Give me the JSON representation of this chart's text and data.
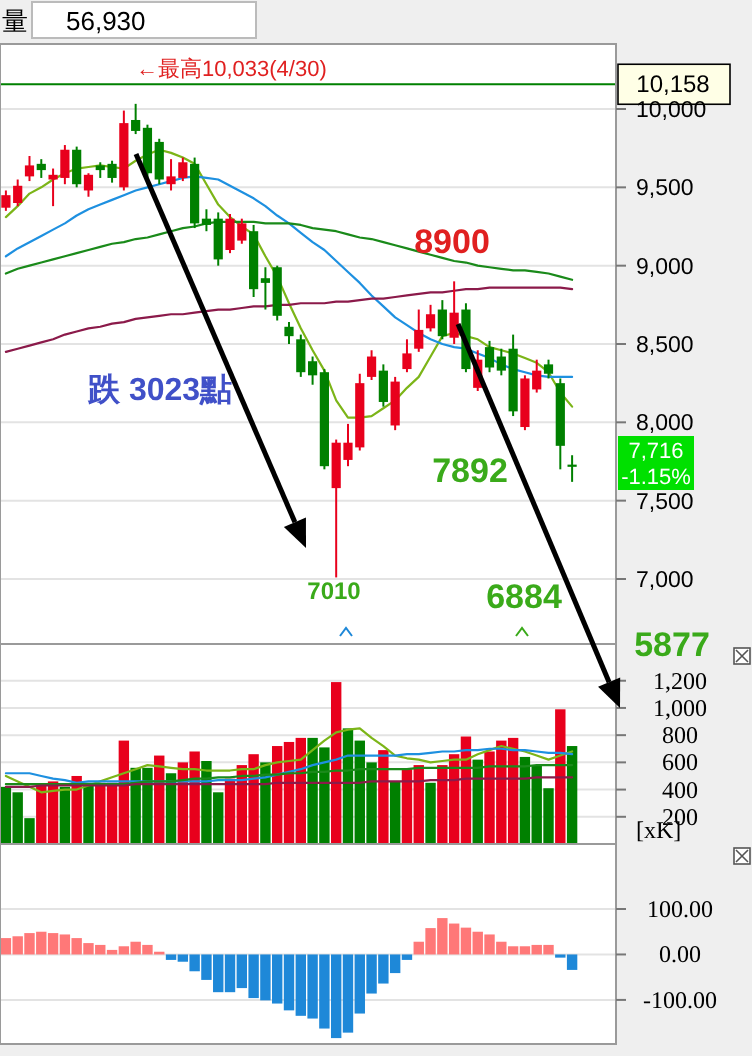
{
  "chart_data": [
    {
      "type": "candlestick",
      "categories": [
        null,
        null,
        null,
        null,
        null,
        null,
        null,
        null,
        null,
        null,
        null,
        null,
        null,
        null,
        null,
        null,
        null,
        null,
        null,
        null,
        null,
        null,
        null,
        null,
        null,
        null,
        null,
        null,
        null,
        null,
        null,
        null,
        null,
        null,
        null,
        null,
        null,
        null,
        null,
        null,
        null,
        null,
        null,
        null,
        null,
        null,
        null,
        null,
        null
      ],
      "ohlc": [
        [
          9370,
          9480,
          9350,
          9450
        ],
        [
          9400,
          9550,
          9380,
          9510
        ],
        [
          9570,
          9700,
          9540,
          9640
        ],
        [
          9650,
          9680,
          9560,
          9610
        ],
        [
          9550,
          9620,
          9380,
          9580
        ],
        [
          9560,
          9770,
          9520,
          9740
        ],
        [
          9740,
          9760,
          9500,
          9520
        ],
        [
          9480,
          9590,
          9440,
          9580
        ],
        [
          9640,
          9660,
          9560,
          9610
        ],
        [
          9650,
          9670,
          9530,
          9560
        ],
        [
          9500,
          9990,
          9480,
          9910
        ],
        [
          9930,
          10033,
          9840,
          9860
        ],
        [
          9880,
          9900,
          9560,
          9590
        ],
        [
          9790,
          9810,
          9520,
          9550
        ],
        [
          9520,
          9680,
          9480,
          9570
        ],
        [
          9560,
          9690,
          9540,
          9660
        ],
        [
          9650,
          9690,
          9240,
          9270
        ],
        [
          9300,
          9360,
          9220,
          9260
        ],
        [
          9300,
          9340,
          9000,
          9040
        ],
        [
          9100,
          9330,
          9080,
          9300
        ],
        [
          9160,
          9300,
          9140,
          9270
        ],
        [
          9220,
          9260,
          8800,
          8850
        ],
        [
          8920,
          8990,
          8720,
          8890
        ],
        [
          8990,
          9000,
          8650,
          8680
        ],
        [
          8610,
          8640,
          8500,
          8550
        ],
        [
          8530,
          8560,
          8290,
          8320
        ],
        [
          8390,
          8420,
          8240,
          8300
        ],
        [
          8320,
          8340,
          7700,
          7720
        ],
        [
          7580,
          7890,
          7010,
          7870
        ],
        [
          7760,
          7990,
          7720,
          7870
        ],
        [
          7840,
          8310,
          7820,
          8250
        ],
        [
          8290,
          8460,
          8270,
          8420
        ],
        [
          8330,
          8370,
          8100,
          8130
        ],
        [
          7980,
          8290,
          7950,
          8260
        ],
        [
          8340,
          8530,
          8320,
          8440
        ],
        [
          8470,
          8720,
          8450,
          8590
        ],
        [
          8600,
          8750,
          8580,
          8690
        ],
        [
          8720,
          8780,
          8530,
          8550
        ],
        [
          8540,
          8900,
          8500,
          8700
        ],
        [
          8720,
          8760,
          8320,
          8340
        ],
        [
          8220,
          8460,
          8200,
          8400
        ],
        [
          8480,
          8520,
          8320,
          8350
        ],
        [
          8420,
          8470,
          8300,
          8330
        ],
        [
          8470,
          8560,
          8040,
          8070
        ],
        [
          7970,
          8300,
          7950,
          8280
        ],
        [
          8210,
          8400,
          8190,
          8330
        ],
        [
          8370,
          8400,
          8280,
          8310
        ],
        [
          8250,
          8280,
          7700,
          7850
        ],
        [
          7730,
          7790,
          7620,
          7716
        ]
      ],
      "colors": [
        "#e8001c",
        "#e8001c",
        "#e8001c",
        "#008000",
        "#e8001c",
        "#e8001c",
        "#008000",
        "#e8001c",
        "#008000",
        "#008000",
        "#e8001c",
        "#008000",
        "#008000",
        "#008000",
        "#e8001c",
        "#e8001c",
        "#008000",
        "#008000",
        "#008000",
        "#e8001c",
        "#e8001c",
        "#008000",
        "#008000",
        "#008000",
        "#008000",
        "#008000",
        "#008000",
        "#008000",
        "#e8001c",
        "#e8001c",
        "#e8001c",
        "#e8001c",
        "#008000",
        "#e8001c",
        "#e8001c",
        "#e8001c",
        "#e8001c",
        "#008000",
        "#e8001c",
        "#008000",
        "#e8001c",
        "#008000",
        "#008000",
        "#008000",
        "#e8001c",
        "#e8001c",
        "#008000",
        "#008000",
        "#008000"
      ],
      "series": [
        {
          "type": "line",
          "color": "#7cb518",
          "values": [
            9310,
            9380,
            9460,
            9500,
            9550,
            9590,
            9620,
            9630,
            9640,
            9630,
            9620,
            9670,
            9710,
            9740,
            9720,
            9690,
            9650,
            9520,
            9390,
            9310,
            9250,
            9200,
            9060,
            8930,
            8760,
            8600,
            8460,
            8330,
            8140,
            8030,
            8030,
            8040,
            8090,
            8140,
            8220,
            8290,
            8420,
            8550,
            8570,
            8550,
            8530,
            8480,
            8460,
            8440,
            8410,
            8380,
            8320,
            8190,
            8100
          ]
        },
        {
          "type": "line",
          "color": "#1e90e0",
          "values": [
            9060,
            9110,
            9150,
            9190,
            9230,
            9270,
            9320,
            9360,
            9390,
            9420,
            9450,
            9480,
            9500,
            9520,
            9540,
            9560,
            9570,
            9560,
            9550,
            9510,
            9470,
            9430,
            9380,
            9320,
            9270,
            9210,
            9150,
            9100,
            9030,
            8960,
            8890,
            8810,
            8740,
            8670,
            8620,
            8570,
            8530,
            8500,
            8480,
            8470,
            8440,
            8410,
            8370,
            8340,
            8320,
            8300,
            8290,
            8290,
            8290
          ]
        },
        {
          "type": "line",
          "color": "#1a8a1a",
          "values": [
            8950,
            8980,
            9000,
            9020,
            9040,
            9060,
            9080,
            9100,
            9120,
            9140,
            9150,
            9170,
            9180,
            9200,
            9220,
            9240,
            9250,
            9270,
            9280,
            9280,
            9280,
            9280,
            9270,
            9270,
            9270,
            9260,
            9240,
            9230,
            9220,
            9200,
            9180,
            9170,
            9150,
            9130,
            9110,
            9090,
            9070,
            9050,
            9030,
            9020,
            9000,
            8990,
            8980,
            8970,
            8970,
            8960,
            8950,
            8930,
            8910
          ]
        },
        {
          "type": "line",
          "color": "#8b1a4a",
          "values": [
            8450,
            8470,
            8490,
            8510,
            8530,
            8560,
            8580,
            8600,
            8610,
            8630,
            8640,
            8660,
            8670,
            8680,
            8690,
            8690,
            8700,
            8710,
            8720,
            8720,
            8730,
            8740,
            8740,
            8750,
            8750,
            8760,
            8760,
            8760,
            8770,
            8770,
            8780,
            8790,
            8790,
            8800,
            8810,
            8820,
            8830,
            8830,
            8840,
            8850,
            8850,
            8860,
            8860,
            8860,
            8860,
            8860,
            8860,
            8860,
            8850
          ]
        }
      ],
      "ylim": [
        6585,
        10415
      ],
      "yticks": [
        {
          "value": 7000,
          "label": "7,000"
        },
        {
          "value": 7500,
          "label": "7,500"
        },
        {
          "value": 8000,
          "label": "8,000"
        },
        {
          "value": 8500,
          "label": "8,500"
        },
        {
          "value": 9000,
          "label": "9,000"
        },
        {
          "value": 9500,
          "label": "9,500"
        },
        {
          "value": 10000,
          "label": "10,000"
        }
      ],
      "grid": "y",
      "tick_labels": "y",
      "ref_lines": [
        {
          "axis": "y",
          "value": 10158,
          "label": "10,158",
          "color": "#008000"
        }
      ],
      "annotations": [
        "量",
        "56,930",
        "←最高10,033(4/30)",
        {
          "text": "8900",
          "y": 8900
        },
        {
          "text": "7010",
          "y": 7010
        },
        "7892",
        "6884",
        "5877",
        "跌 3023點",
        "7,716",
        "-1.15%"
      ]
    },
    {
      "type": "bar",
      "categories": [
        null,
        null,
        null,
        null,
        null,
        null,
        null,
        null,
        null,
        null,
        null,
        null,
        null,
        null,
        null,
        null,
        null,
        null,
        null,
        null,
        null,
        null,
        null,
        null,
        null,
        null,
        null,
        null,
        null,
        null,
        null,
        null,
        null,
        null,
        null,
        null,
        null,
        null,
        null,
        null,
        null,
        null,
        null,
        null,
        null,
        null,
        null,
        null,
        null
      ],
      "series": [
        {
          "type": "bar",
          "values": [
            420,
            380,
            190,
            440,
            460,
            420,
            500,
            450,
            450,
            450,
            760,
            560,
            560,
            650,
            520,
            600,
            680,
            610,
            380,
            480,
            580,
            660,
            600,
            720,
            750,
            780,
            780,
            710,
            1190,
            850,
            760,
            600,
            690,
            460,
            550,
            580,
            450,
            580,
            660,
            790,
            620,
            680,
            760,
            780,
            640,
            580,
            410,
            990,
            720
          ],
          "colors": [
            "#008000",
            "#008000",
            "#008000",
            "#e8001c",
            "#e8001c",
            "#008000",
            "#e8001c",
            "#008000",
            "#e8001c",
            "#e8001c",
            "#e8001c",
            "#008000",
            "#008000",
            "#e8001c",
            "#008000",
            "#e8001c",
            "#e8001c",
            "#008000",
            "#008000",
            "#e8001c",
            "#e8001c",
            "#e8001c",
            "#008000",
            "#e8001c",
            "#e8001c",
            "#e8001c",
            "#008000",
            "#008000",
            "#e8001c",
            "#008000",
            "#008000",
            "#008000",
            "#e8001c",
            "#008000",
            "#e8001c",
            "#e8001c",
            "#008000",
            "#e8001c",
            "#e8001c",
            "#e8001c",
            "#008000",
            "#e8001c",
            "#e8001c",
            "#e8001c",
            "#008000",
            "#008000",
            "#008000",
            "#e8001c",
            "#008000"
          ]
        },
        {
          "type": "line",
          "color": "#7cb518",
          "values": [
            500,
            460,
            420,
            380,
            390,
            400,
            400,
            430,
            460,
            490,
            520,
            550,
            580,
            570,
            560,
            550,
            550,
            540,
            540,
            540,
            550,
            550,
            580,
            600,
            610,
            620,
            690,
            760,
            820,
            840,
            850,
            780,
            720,
            650,
            630,
            620,
            600,
            610,
            620,
            620,
            660,
            690,
            720,
            700,
            680,
            650,
            620,
            650,
            680
          ]
        },
        {
          "type": "line",
          "color": "#1e90e0",
          "values": [
            520,
            520,
            520,
            500,
            480,
            470,
            450,
            460,
            460,
            460,
            460,
            460,
            460,
            460,
            460,
            460,
            460,
            460,
            470,
            470,
            470,
            480,
            490,
            510,
            530,
            550,
            580,
            600,
            620,
            650,
            650,
            650,
            650,
            650,
            660,
            660,
            670,
            680,
            680,
            690,
            690,
            700,
            700,
            690,
            690,
            680,
            670,
            670,
            660
          ]
        },
        {
          "type": "line",
          "color": "#1a8a1a",
          "values": [
            440,
            440,
            440,
            440,
            440,
            440,
            440,
            440,
            440,
            440,
            440,
            450,
            460,
            460,
            460,
            470,
            480,
            480,
            490,
            490,
            500,
            500,
            510,
            510,
            520,
            520,
            530,
            530,
            540,
            540,
            550,
            550,
            550,
            550,
            550,
            560,
            560,
            560,
            560,
            560,
            560,
            570,
            570,
            570,
            570,
            580,
            580,
            580,
            580
          ]
        },
        {
          "type": "line",
          "color": "#8b1a4a",
          "values": [
            420,
            420,
            420,
            430,
            430,
            430,
            430,
            430,
            430,
            430,
            430,
            440,
            440,
            440,
            440,
            440,
            440,
            440,
            440,
            440,
            440,
            440,
            440,
            450,
            450,
            450,
            450,
            450,
            450,
            450,
            450,
            460,
            460,
            460,
            460,
            460,
            470,
            470,
            470,
            480,
            480,
            480,
            480,
            480,
            480,
            490,
            490,
            490,
            490
          ]
        }
      ],
      "ylim": [
        0,
        1470
      ],
      "yticks": [
        {
          "value": 200,
          "label": "200"
        },
        {
          "value": 400,
          "label": "400"
        },
        {
          "value": 600,
          "label": "600"
        },
        {
          "value": 800,
          "label": "800"
        },
        {
          "value": 1000,
          "label": "1,000"
        },
        {
          "value": 1200,
          "label": "1,200"
        }
      ],
      "ylabel": "[xK]",
      "grid": "y",
      "tick_labels": "y"
    },
    {
      "type": "bar",
      "categories": [
        null,
        null,
        null,
        null,
        null,
        null,
        null,
        null,
        null,
        null,
        null,
        null,
        null,
        null,
        null,
        null,
        null,
        null,
        null,
        null,
        null,
        null,
        null,
        null,
        null,
        null,
        null,
        null,
        null,
        null,
        null,
        null,
        null,
        null,
        null,
        null,
        null,
        null,
        null,
        null,
        null,
        null,
        null,
        null,
        null,
        null,
        null,
        null,
        null
      ],
      "values": [
        36,
        40,
        47,
        50,
        47,
        44,
        36,
        25,
        21,
        10,
        18,
        28,
        21,
        6,
        -12,
        -16,
        -37,
        -56,
        -83,
        -83,
        -74,
        -96,
        -101,
        -108,
        -123,
        -135,
        -141,
        -163,
        -184,
        -172,
        -130,
        -86,
        -64,
        -41,
        -12,
        28,
        58,
        80,
        68,
        59,
        50,
        44,
        28,
        18,
        18,
        21,
        21,
        -7,
        -34
      ],
      "colors": [
        "#ff7878",
        "#ff7878",
        "#ff7878",
        "#ff7878",
        "#ff7878",
        "#ff7878",
        "#ff7878",
        "#ff7878",
        "#ff7878",
        "#ff7878",
        "#ff7878",
        "#ff7878",
        "#ff7878",
        "#ff7878",
        "#1e88d8",
        "#1e88d8",
        "#1e88d8",
        "#1e88d8",
        "#1e88d8",
        "#1e88d8",
        "#1e88d8",
        "#1e88d8",
        "#1e88d8",
        "#1e88d8",
        "#1e88d8",
        "#1e88d8",
        "#1e88d8",
        "#1e88d8",
        "#1e88d8",
        "#1e88d8",
        "#1e88d8",
        "#1e88d8",
        "#1e88d8",
        "#1e88d8",
        "#1e88d8",
        "#ff7878",
        "#ff7878",
        "#ff7878",
        "#ff7878",
        "#ff7878",
        "#ff7878",
        "#ff7878",
        "#ff7878",
        "#ff7878",
        "#ff7878",
        "#ff7878",
        "#ff7878",
        "#1e88d8",
        "#1e88d8"
      ],
      "ylim": [
        -197,
        243
      ],
      "yticks": [
        {
          "value": -100,
          "label": "-100.00"
        },
        {
          "value": 0,
          "label": "0.00"
        },
        {
          "value": 100,
          "label": "100.00"
        }
      ],
      "grid": "y",
      "tick_labels": "y"
    }
  ]
}
